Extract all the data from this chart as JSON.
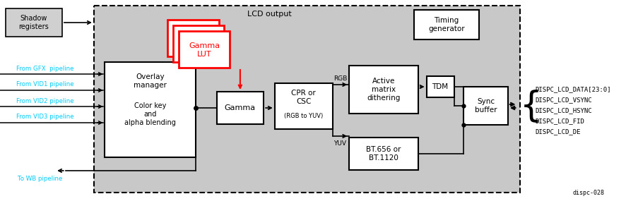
{
  "bg_color": "#c8c8c8",
  "white": "#ffffff",
  "black": "#000000",
  "red": "#ff0000",
  "cyan": "#00ccff",
  "fig_width": 8.87,
  "fig_height": 2.85,
  "title_text": "LCD output",
  "footer_text": "dispc-028",
  "signal_labels": [
    "DISPC_LCD_DATA[23:0]",
    "DISPC_LCD_VSYNC",
    "DISPC_LCD_HSYNC",
    "DISPC_LCD_FID",
    "DISPC_LCD_DE"
  ],
  "left_labels": [
    "From GFX  pipeline",
    "From VID1 pipeline",
    "From VID2 pipeline",
    "From VID3 pipeline"
  ],
  "bottom_label": "To WB pipeline"
}
